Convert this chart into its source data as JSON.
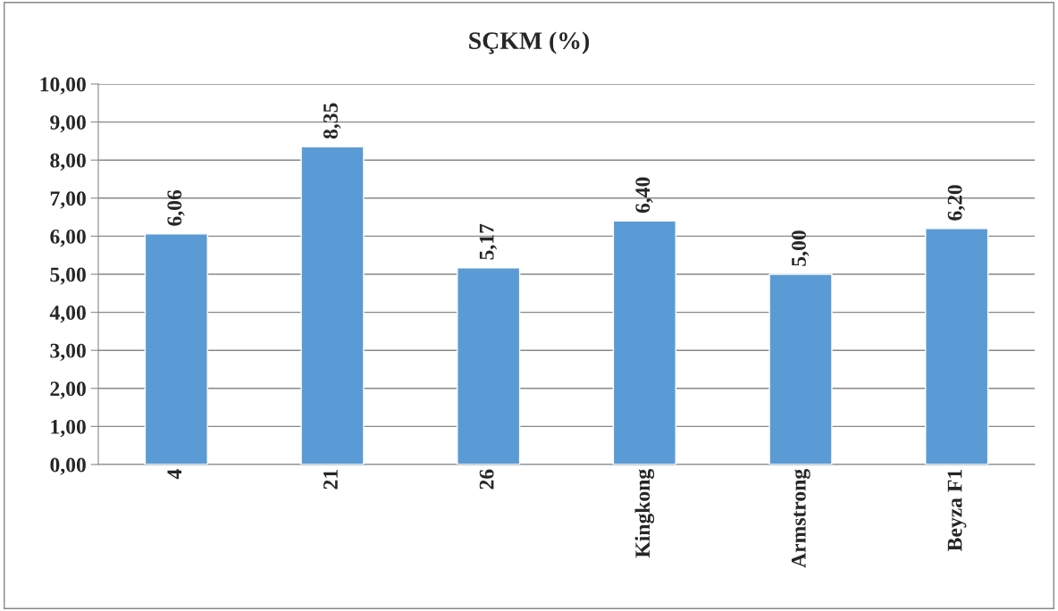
{
  "chart_data": {
    "type": "bar",
    "title": "SÇKM (%)",
    "categories": [
      "4",
      "21",
      "26",
      "Kingkong",
      "Armstrong",
      "Beyza F1"
    ],
    "values": [
      6.06,
      8.35,
      5.17,
      6.4,
      5.0,
      6.2
    ],
    "value_labels": [
      "6,06",
      "8,35",
      "5,17",
      "6,40",
      "5,00",
      "6,20"
    ],
    "color": "#5b9bd5",
    "ylim": [
      0,
      10
    ],
    "yticks": [
      {
        "value": 0,
        "label": "0,00"
      },
      {
        "value": 1,
        "label": "1,00"
      },
      {
        "value": 2,
        "label": "2,00"
      },
      {
        "value": 3,
        "label": "3,00"
      },
      {
        "value": 4,
        "label": "4,00"
      },
      {
        "value": 5,
        "label": "5,00"
      },
      {
        "value": 6,
        "label": "6,00"
      },
      {
        "value": 7,
        "label": "7,00"
      },
      {
        "value": 8,
        "label": "8,00"
      },
      {
        "value": 9,
        "label": "9,00"
      },
      {
        "value": 10,
        "label": "10,00"
      }
    ],
    "grid": "y",
    "legend": false
  }
}
